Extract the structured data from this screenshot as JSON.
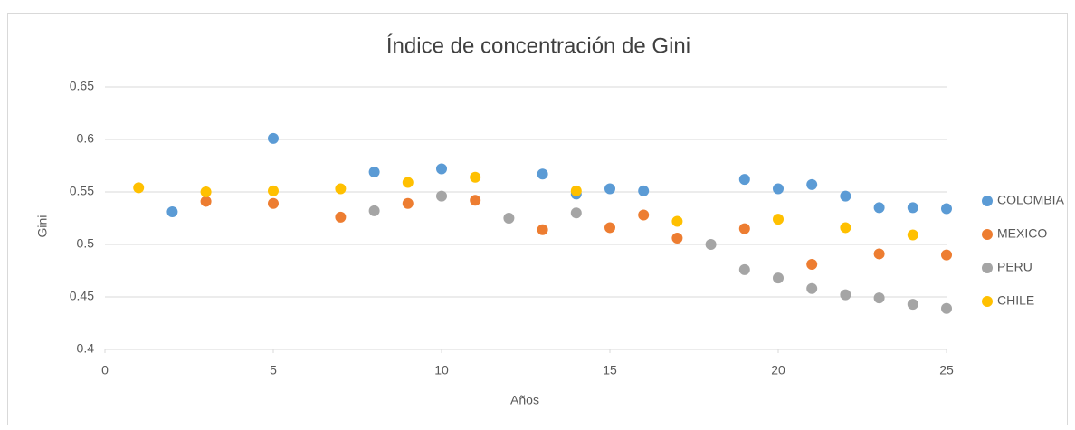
{
  "chart_data": {
    "type": "scatter",
    "title": "Índice de concentración de Gini",
    "x_label": "Años",
    "y_label": "Gini",
    "xlim": [
      0,
      25
    ],
    "xticks": [
      0,
      5,
      10,
      15,
      20,
      25
    ],
    "ylim": [
      0.4,
      0.65
    ],
    "yticks": [
      0.4,
      0.45,
      0.5,
      0.55,
      0.6,
      0.65
    ],
    "grid": true,
    "legend": "right",
    "series": [
      {
        "name": "COLOMBIA",
        "color": "#5b9bd5",
        "x": [
          2,
          5,
          8,
          10,
          13,
          14,
          15,
          16,
          19,
          20,
          21,
          22,
          23,
          24,
          25
        ],
        "values": [
          0.531,
          0.601,
          0.569,
          0.572,
          0.567,
          0.548,
          0.553,
          0.551,
          0.562,
          0.553,
          0.557,
          0.546,
          0.535,
          0.535,
          0.534
        ]
      },
      {
        "name": "MEXICO",
        "color": "#ed7d31",
        "x": [
          3,
          5,
          7,
          9,
          11,
          13,
          15,
          16,
          17,
          19,
          21,
          23,
          25
        ],
        "values": [
          0.541,
          0.539,
          0.526,
          0.539,
          0.542,
          0.514,
          0.516,
          0.528,
          0.506,
          0.515,
          0.481,
          0.491,
          0.49
        ]
      },
      {
        "name": "PERU",
        "color": "#a5a5a5",
        "x": [
          8,
          10,
          12,
          14,
          18,
          19,
          20,
          21,
          22,
          23,
          24,
          25
        ],
        "values": [
          0.532,
          0.546,
          0.525,
          0.53,
          0.5,
          0.476,
          0.468,
          0.458,
          0.452,
          0.449,
          0.443,
          0.439
        ]
      },
      {
        "name": "CHILE",
        "color": "#ffc000",
        "x": [
          1,
          3,
          5,
          7,
          9,
          11,
          14,
          17,
          20,
          22,
          24
        ],
        "values": [
          0.554,
          0.55,
          0.551,
          0.553,
          0.559,
          0.564,
          0.551,
          0.522,
          0.524,
          0.516,
          0.509
        ]
      }
    ]
  }
}
